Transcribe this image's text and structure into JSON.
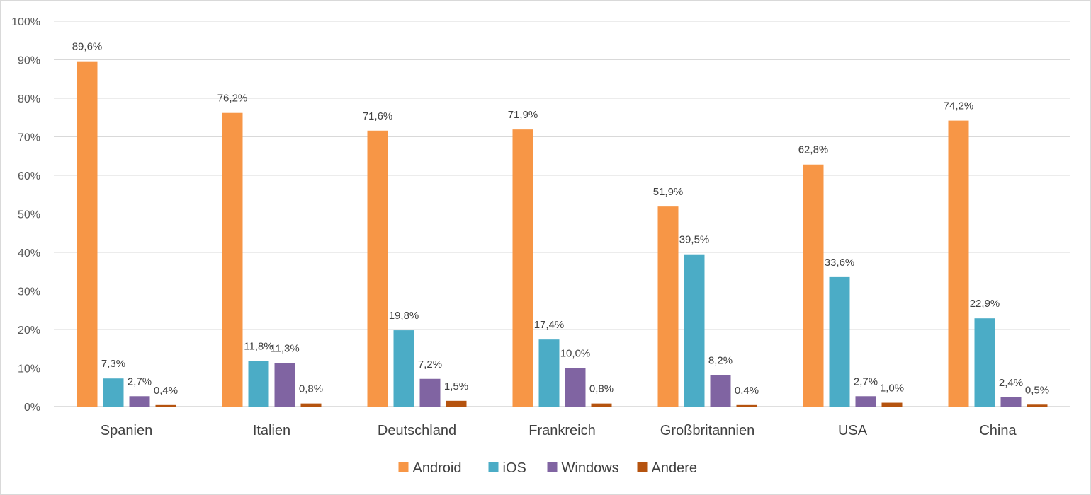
{
  "chart_data": {
    "type": "bar",
    "title": "",
    "xlabel": "",
    "ylabel": "",
    "ylim": [
      0,
      100
    ],
    "y_ticks": [
      "0%",
      "10%",
      "20%",
      "30%",
      "40%",
      "50%",
      "60%",
      "70%",
      "80%",
      "90%",
      "100%"
    ],
    "grid": true,
    "legend_position": "bottom",
    "categories": [
      "Spanien",
      "Italien",
      "Deutschland",
      "Frankreich",
      "Großbritannien",
      "USA",
      "China"
    ],
    "series": [
      {
        "name": "Android",
        "color": "#f79646",
        "values": [
          89.6,
          76.2,
          71.6,
          71.9,
          51.9,
          62.8,
          74.2
        ],
        "labels": [
          "89,6%",
          "76,2%",
          "71,6%",
          "71,9%",
          "51,9%",
          "62,8%",
          "74,2%"
        ]
      },
      {
        "name": "iOS",
        "color": "#4bacc6",
        "values": [
          7.3,
          11.8,
          19.8,
          17.4,
          39.5,
          33.6,
          22.9
        ],
        "labels": [
          "7,3%",
          "11,8%",
          "19,8%",
          "17,4%",
          "39,5%",
          "33,6%",
          "22,9%"
        ]
      },
      {
        "name": "Windows",
        "color": "#8064a2",
        "values": [
          2.7,
          11.3,
          7.2,
          10.0,
          8.2,
          2.7,
          2.4
        ],
        "labels": [
          "2,7%",
          "11,3%",
          "7,2%",
          "10,0%",
          "8,2%",
          "2,7%",
          "2,4%"
        ]
      },
      {
        "name": "Andere",
        "color": "#c0504d",
        "bar_color": "#b5530f",
        "values": [
          0.4,
          0.8,
          1.5,
          0.8,
          0.4,
          1.0,
          0.5
        ],
        "labels": [
          "0,4%",
          "0,8%",
          "1,5%",
          "0,8%",
          "0,4%",
          "1,0%",
          "0,5%"
        ]
      }
    ]
  }
}
